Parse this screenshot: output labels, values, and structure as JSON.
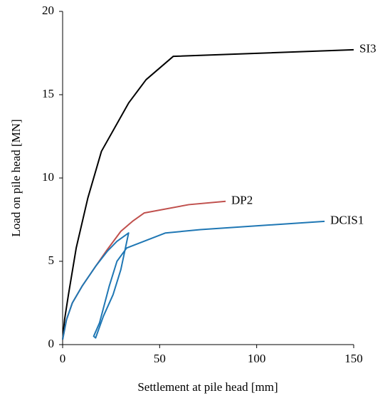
{
  "chart_data": {
    "type": "line",
    "x_label": "Settlement at pile head [mm]",
    "y_label": "Load on pile head [MN]",
    "xlim": [
      0,
      150
    ],
    "xticks": [
      0,
      50,
      100,
      150
    ],
    "ylim": [
      0,
      20
    ],
    "yticks": [
      0,
      5,
      10,
      15,
      20
    ],
    "grid": false,
    "series": [
      {
        "name": "SI3",
        "color": "#000000",
        "x": [
          0,
          1,
          3,
          7,
          13,
          20,
          34,
          43,
          57,
          150
        ],
        "values": [
          0.3,
          1.5,
          3,
          5.8,
          8.8,
          11.6,
          14.5,
          15.9,
          17.3,
          17.7
        ]
      },
      {
        "name": "DP2",
        "color": "#c0504d",
        "x": [
          0,
          2,
          5,
          10,
          17,
          23,
          30,
          36,
          42,
          65,
          84
        ],
        "values": [
          0.3,
          1.5,
          2.5,
          3.5,
          4.7,
          5.7,
          6.8,
          7.4,
          7.9,
          8.4,
          8.6
        ]
      },
      {
        "name": "DCIS1",
        "color": "#1f77b4",
        "x": [
          0,
          2,
          5,
          10,
          17,
          23,
          28,
          34,
          30,
          26,
          21,
          17,
          16,
          19,
          24,
          28,
          33,
          53,
          71,
          135
        ],
        "values": [
          0.3,
          1.5,
          2.5,
          3.5,
          4.7,
          5.6,
          6.2,
          6.7,
          4.5,
          3.0,
          1.7,
          0.4,
          0.5,
          1.3,
          3.5,
          5.0,
          5.8,
          6.7,
          6.9,
          7.4
        ]
      }
    ]
  }
}
